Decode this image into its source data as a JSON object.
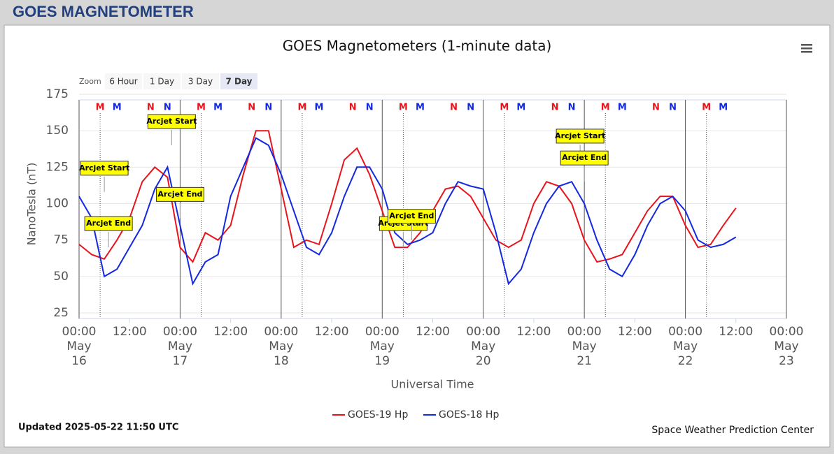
{
  "header": {
    "title": "GOES MAGNETOMETER"
  },
  "zoom": {
    "label": "Zoom",
    "buttons": [
      "6 Hour",
      "1 Day",
      "3 Day",
      "7 Day"
    ],
    "active": 3
  },
  "footer": {
    "updated": "Updated 2025-05-22 11:50 UTC",
    "credit": "Space Weather Prediction Center"
  },
  "chart_data": {
    "type": "line",
    "title": "GOES Magnetometers (1-minute data)",
    "y_label": "NanoTesla (nT)",
    "x_label": "Universal Time",
    "ylim": [
      25,
      175
    ],
    "yticks": [
      25,
      50,
      75,
      100,
      125,
      150,
      175
    ],
    "grid": true,
    "xlim": [
      "May 16 00:00",
      "May 23 00:00"
    ],
    "xticks": [
      {
        "value": "May 16 00:00",
        "label": "00:00 May 16"
      },
      {
        "value": "May 16 12:00",
        "label": "12:00"
      },
      {
        "value": "May 17 00:00",
        "label": "00:00 May 17"
      },
      {
        "value": "May 17 12:00",
        "label": "12:00"
      },
      {
        "value": "May 18 00:00",
        "label": "00:00 May 18"
      },
      {
        "value": "May 18 12:00",
        "label": "12:00"
      },
      {
        "value": "May 19 00:00",
        "label": "00:00 May 19"
      },
      {
        "value": "May 19 12:00",
        "label": "12:00"
      },
      {
        "value": "May 20 00:00",
        "label": "00:00 May 20"
      },
      {
        "value": "May 20 12:00",
        "label": "12:00"
      },
      {
        "value": "May 21 00:00",
        "label": "00:00 May 21"
      },
      {
        "value": "May 21 12:00",
        "label": "12:00"
      },
      {
        "value": "May 22 00:00",
        "label": "00:00 May 22"
      },
      {
        "value": "May 22 12:00",
        "label": "12:00"
      },
      {
        "value": "May 23 00:00",
        "label": "00:00 May 23"
      }
    ],
    "x": [
      "May 16 00:00",
      "May 16 03:00",
      "May 16 06:00",
      "May 16 09:00",
      "May 16 12:00",
      "May 16 15:00",
      "May 16 18:00",
      "May 16 21:00",
      "May 17 00:00",
      "May 17 03:00",
      "May 17 06:00",
      "May 17 09:00",
      "May 17 12:00",
      "May 17 15:00",
      "May 17 18:00",
      "May 17 21:00",
      "May 18 00:00",
      "May 18 03:00",
      "May 18 06:00",
      "May 18 09:00",
      "May 18 12:00",
      "May 18 15:00",
      "May 18 18:00",
      "May 18 21:00",
      "May 19 00:00",
      "May 19 03:00",
      "May 19 06:00",
      "May 19 09:00",
      "May 19 12:00",
      "May 19 15:00",
      "May 19 18:00",
      "May 19 21:00",
      "May 20 00:00",
      "May 20 03:00",
      "May 20 06:00",
      "May 20 09:00",
      "May 20 12:00",
      "May 20 15:00",
      "May 20 18:00",
      "May 20 21:00",
      "May 21 00:00",
      "May 21 03:00",
      "May 21 06:00",
      "May 21 09:00",
      "May 21 12:00",
      "May 21 15:00",
      "May 21 18:00",
      "May 21 21:00",
      "May 22 00:00",
      "May 22 03:00",
      "May 22 06:00",
      "May 22 09:00",
      "May 22 12:00"
    ],
    "series": [
      {
        "name": "GOES-19 Hp",
        "color": "#e8141c",
        "values": [
          72,
          65,
          62,
          75,
          90,
          115,
          125,
          118,
          70,
          60,
          80,
          75,
          85,
          120,
          150,
          150,
          110,
          70,
          75,
          72,
          100,
          130,
          138,
          120,
          95,
          70,
          70,
          80,
          95,
          110,
          112,
          105,
          90,
          75,
          70,
          75,
          100,
          115,
          112,
          100,
          75,
          60,
          62,
          65,
          80,
          95,
          105,
          105,
          85,
          70,
          72,
          85,
          97
        ]
      },
      {
        "name": "GOES-18 Hp",
        "color": "#1428e0",
        "values": [
          105,
          90,
          50,
          55,
          70,
          85,
          110,
          125,
          85,
          45,
          60,
          65,
          105,
          125,
          145,
          140,
          120,
          95,
          70,
          65,
          80,
          105,
          125,
          125,
          110,
          80,
          72,
          75,
          80,
          100,
          115,
          112,
          110,
          80,
          45,
          55,
          80,
          100,
          112,
          115,
          100,
          75,
          55,
          50,
          65,
          85,
          100,
          105,
          95,
          75,
          70,
          72,
          77
        ]
      }
    ],
    "markers": [
      {
        "label": "M",
        "x": "May 16 05:00",
        "color": "#e8141c"
      },
      {
        "label": "M",
        "x": "May 16 09:00",
        "color": "#1428e0"
      },
      {
        "label": "N",
        "x": "May 16 17:00",
        "color": "#e8141c"
      },
      {
        "label": "N",
        "x": "May 16 21:00",
        "color": "#1428e0"
      },
      {
        "label": "M",
        "x": "May 17 05:00",
        "color": "#e8141c"
      },
      {
        "label": "M",
        "x": "May 17 09:00",
        "color": "#1428e0"
      },
      {
        "label": "N",
        "x": "May 17 17:00",
        "color": "#e8141c"
      },
      {
        "label": "N",
        "x": "May 17 21:00",
        "color": "#1428e0"
      },
      {
        "label": "M",
        "x": "May 18 05:00",
        "color": "#e8141c"
      },
      {
        "label": "M",
        "x": "May 18 09:00",
        "color": "#1428e0"
      },
      {
        "label": "N",
        "x": "May 18 17:00",
        "color": "#e8141c"
      },
      {
        "label": "N",
        "x": "May 18 21:00",
        "color": "#1428e0"
      },
      {
        "label": "M",
        "x": "May 19 05:00",
        "color": "#e8141c"
      },
      {
        "label": "M",
        "x": "May 19 09:00",
        "color": "#1428e0"
      },
      {
        "label": "N",
        "x": "May 19 17:00",
        "color": "#e8141c"
      },
      {
        "label": "N",
        "x": "May 19 21:00",
        "color": "#1428e0"
      },
      {
        "label": "M",
        "x": "May 20 05:00",
        "color": "#e8141c"
      },
      {
        "label": "M",
        "x": "May 20 09:00",
        "color": "#1428e0"
      },
      {
        "label": "N",
        "x": "May 20 17:00",
        "color": "#e8141c"
      },
      {
        "label": "N",
        "x": "May 20 21:00",
        "color": "#1428e0"
      },
      {
        "label": "M",
        "x": "May 21 05:00",
        "color": "#e8141c"
      },
      {
        "label": "M",
        "x": "May 21 09:00",
        "color": "#1428e0"
      },
      {
        "label": "N",
        "x": "May 21 17:00",
        "color": "#e8141c"
      },
      {
        "label": "N",
        "x": "May 21 21:00",
        "color": "#1428e0"
      },
      {
        "label": "M",
        "x": "May 22 05:00",
        "color": "#e8141c"
      },
      {
        "label": "M",
        "x": "May 22 09:00",
        "color": "#1428e0"
      }
    ],
    "annotations": [
      {
        "text": "Arcjet Start",
        "x": "May 16 06:00",
        "y": 108
      },
      {
        "text": "Arcjet End",
        "x": "May 16 07:00",
        "y": 70
      },
      {
        "text": "Arcjet Start",
        "x": "May 16 22:00",
        "y": 140
      },
      {
        "text": "Arcjet End",
        "x": "May 17 00:00",
        "y": 90
      },
      {
        "text": "Arcjet Start",
        "x": "May 19 05:00",
        "y": 70
      },
      {
        "text": "Arcjet End",
        "x": "May 19 07:00",
        "y": 75
      },
      {
        "text": "Arcjet Start",
        "x": "May 20 23:00",
        "y": 130
      },
      {
        "text": "Arcjet End",
        "x": "May 21 00:00",
        "y": 115
      }
    ]
  }
}
